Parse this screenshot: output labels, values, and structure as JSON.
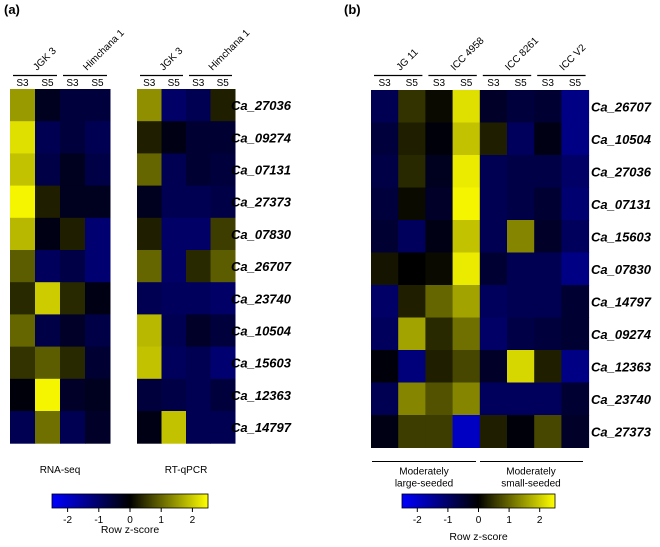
{
  "chart_data": [
    {
      "type": "heatmap",
      "panel_label": "(a)",
      "matrices": [
        {
          "id": "a-rnaseq",
          "label": "RNA-seq",
          "groups": [
            {
              "name": "JGK 3",
              "columns": [
                "S3",
                "S5"
              ]
            },
            {
              "name": "Himchana 1",
              "columns": [
                "S3",
                "S5"
              ]
            }
          ],
          "values": [
            [
              1.5,
              -0.3,
              -0.6,
              -0.6
            ],
            [
              2.2,
              -0.8,
              -0.6,
              -0.8
            ],
            [
              1.9,
              -0.7,
              -0.3,
              -0.7
            ],
            [
              2.4,
              0.3,
              -0.3,
              -0.3
            ],
            [
              1.8,
              -0.2,
              0.3,
              -1.1
            ],
            [
              0.9,
              -0.9,
              -0.7,
              -1.1
            ],
            [
              0.4,
              2.0,
              0.4,
              -0.2
            ],
            [
              1.0,
              -0.7,
              -0.4,
              -0.7
            ],
            [
              0.5,
              0.9,
              0.4,
              -0.5
            ],
            [
              -0.1,
              2.4,
              -0.4,
              -0.3
            ],
            [
              -0.8,
              1.1,
              -0.8,
              -0.4
            ]
          ]
        },
        {
          "id": "a-rtqpcr",
          "label": "RT-qPCR",
          "groups": [
            {
              "name": "JGK 3",
              "columns": [
                "S3",
                "S5"
              ]
            },
            {
              "name": "Himchana 1",
              "columns": [
                "S3",
                "S5"
              ]
            }
          ],
          "values": [
            [
              1.4,
              -1.0,
              -0.8,
              0.3
            ],
            [
              0.3,
              -0.2,
              -0.5,
              -0.5
            ],
            [
              1.0,
              -0.8,
              -0.5,
              -0.6
            ],
            [
              -0.3,
              -0.8,
              -0.8,
              -0.7
            ],
            [
              0.3,
              -1.0,
              -1.0,
              0.6
            ],
            [
              1.0,
              -1.0,
              0.4,
              0.9
            ],
            [
              -0.8,
              -0.9,
              -0.9,
              -1.0
            ],
            [
              1.8,
              -0.8,
              -0.4,
              -0.6
            ],
            [
              1.9,
              -0.9,
              -0.8,
              -1.1
            ],
            [
              -0.6,
              -0.7,
              -0.8,
              -0.6
            ],
            [
              -0.2,
              1.9,
              -0.8,
              -0.8
            ]
          ]
        }
      ],
      "rows": [
        "Ca_27036",
        "Ca_09274",
        "Ca_07131",
        "Ca_27373",
        "Ca_07830",
        "Ca_26707",
        "Ca_23740",
        "Ca_10504",
        "Ca_15603",
        "Ca_12363",
        "Ca_14797"
      ],
      "color_scale": {
        "min": -2.5,
        "max": 2.5,
        "colors": [
          "#0000ff",
          "#000000",
          "#ffff00"
        ]
      },
      "legend": {
        "title": "Row z-score",
        "ticks": [
          -2,
          -1,
          0,
          1,
          2
        ],
        "tick_labels": [
          "-2",
          "-1",
          "0",
          "1",
          "2"
        ]
      }
    },
    {
      "type": "heatmap",
      "panel_label": "(b)",
      "matrices": [
        {
          "id": "b-main",
          "label": "",
          "groups": [
            {
              "name": "JG 11",
              "columns": [
                "S3",
                "S5"
              ]
            },
            {
              "name": "ICC 4958",
              "columns": [
                "S3",
                "S5"
              ]
            },
            {
              "name": "ICC 8261",
              "columns": [
                "S3",
                "S5"
              ]
            },
            {
              "name": "ICC V2",
              "columns": [
                "S3",
                "S5"
              ]
            }
          ],
          "values": [
            [
              -0.8,
              0.5,
              0.1,
              2.2,
              -0.4,
              -0.6,
              -0.5,
              -1.3
            ],
            [
              -0.6,
              0.3,
              -0.1,
              1.9,
              0.3,
              -0.9,
              -0.2,
              -1.3
            ],
            [
              -0.7,
              0.4,
              -0.3,
              2.3,
              -0.8,
              -0.7,
              -0.7,
              -1.0
            ],
            [
              -0.6,
              0.1,
              -0.4,
              2.4,
              -0.8,
              -0.7,
              -0.5,
              -1.1
            ],
            [
              -0.5,
              -0.9,
              -0.2,
              1.9,
              -0.8,
              1.3,
              -0.4,
              -0.9
            ],
            [
              0.2,
              0.0,
              0.1,
              2.3,
              -0.5,
              -0.8,
              -0.8,
              -1.3
            ],
            [
              -1.0,
              0.3,
              1.0,
              1.6,
              -0.9,
              -0.8,
              -0.8,
              -0.5
            ],
            [
              -0.9,
              1.6,
              0.4,
              1.1,
              -1.0,
              -0.7,
              -0.6,
              -0.5
            ],
            [
              -0.1,
              -1.2,
              0.3,
              0.7,
              -0.4,
              2.1,
              0.3,
              -1.3
            ],
            [
              -0.8,
              1.3,
              0.8,
              1.3,
              -0.9,
              -0.9,
              -0.9,
              -0.5
            ],
            [
              -0.2,
              0.6,
              0.6,
              -1.9,
              0.3,
              -0.1,
              0.7,
              -0.4
            ]
          ]
        }
      ],
      "rows": [
        "Ca_26707",
        "Ca_10504",
        "Ca_27036",
        "Ca_07131",
        "Ca_15603",
        "Ca_07830",
        "Ca_14797",
        "Ca_09274",
        "Ca_12363",
        "Ca_23740",
        "Ca_27373"
      ],
      "bottom_groups": [
        {
          "label_lines": [
            "Moderately",
            "large-seeded"
          ]
        },
        {
          "label_lines": [
            "Moderately",
            "small-seeded"
          ]
        }
      ],
      "color_scale": {
        "min": -2.5,
        "max": 2.5,
        "colors": [
          "#0000ff",
          "#000000",
          "#ffff00"
        ]
      },
      "legend": {
        "title": "Row z-score",
        "ticks": [
          -2,
          -1,
          0,
          1,
          2
        ],
        "tick_labels": [
          "-2",
          "-1",
          "0",
          "1",
          "2"
        ]
      }
    }
  ]
}
